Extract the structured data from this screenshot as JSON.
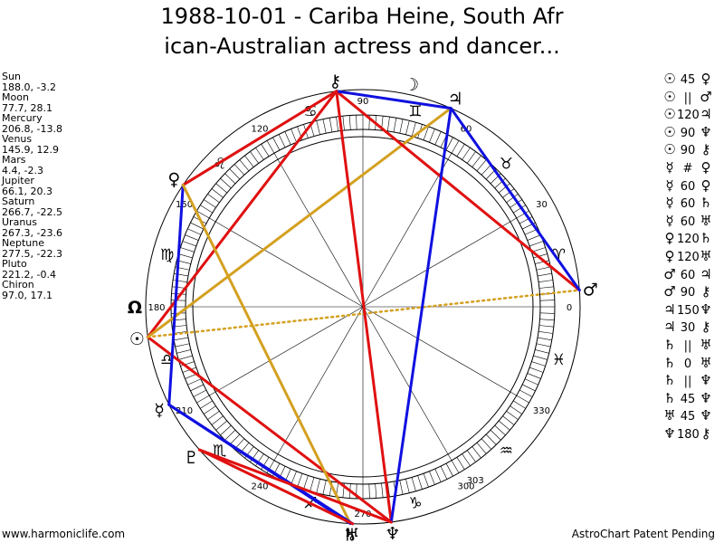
{
  "title": {
    "line1": "1988-10-01 - Cariba Heine, South Afr",
    "line2": "ican-Australian actress and dancer..."
  },
  "planets": [
    {
      "name": "Sun",
      "glyph": "☉",
      "coords": "188.0, -3.2",
      "lon": 188.0
    },
    {
      "name": "Moon",
      "glyph": "☽",
      "coords": "77.7, 28.1",
      "lon": 77.7
    },
    {
      "name": "Mercury",
      "glyph": "☿",
      "coords": "206.8, -13.8",
      "lon": 206.8
    },
    {
      "name": "Venus",
      "glyph": "♀",
      "coords": "145.9, 12.9",
      "lon": 145.9
    },
    {
      "name": "Mars",
      "glyph": "♂",
      "coords": "4.4, -2.3",
      "lon": 4.4
    },
    {
      "name": "Jupiter",
      "glyph": "♃",
      "coords": "66.1, 20.3",
      "lon": 66.1
    },
    {
      "name": "Saturn",
      "glyph": "♄",
      "coords": "266.7, -22.5",
      "lon": 266.7
    },
    {
      "name": "Uranus",
      "glyph": "♅",
      "coords": "267.3, -23.6",
      "lon": 267.3
    },
    {
      "name": "Neptune",
      "glyph": "♆",
      "coords": "277.5, -22.3",
      "lon": 277.5
    },
    {
      "name": "Pluto",
      "glyph": "♇",
      "coords": "221.2, -0.4",
      "lon": 221.2
    },
    {
      "name": "Chiron",
      "glyph": "⚷",
      "coords": "97.0, 17.1",
      "lon": 97.0
    }
  ],
  "extra_points": [
    {
      "glyph": "Ω",
      "lon": 180.0
    }
  ],
  "degree_labels": [
    "0",
    "30",
    "60",
    "90",
    "120",
    "150",
    "180",
    "210",
    "240",
    "270",
    "300",
    "330",
    "303"
  ],
  "zodiac": [
    "♈",
    "♉",
    "♊",
    "♋",
    "♌",
    "♍",
    "♎",
    "♏",
    "♐",
    "♑",
    "♒",
    "♓"
  ],
  "aspects_table": [
    {
      "g1": "☉",
      "sym": "45",
      "g2": "♀"
    },
    {
      "g1": "☉",
      "sym": "||",
      "g2": "♂"
    },
    {
      "g1": "☉",
      "sym": "120",
      "g2": "♃"
    },
    {
      "g1": "☉",
      "sym": "90",
      "g2": "♆"
    },
    {
      "g1": "☉",
      "sym": "90",
      "g2": "⚷"
    },
    {
      "g1": "☿",
      "sym": "#",
      "g2": "♀"
    },
    {
      "g1": "☿",
      "sym": "60",
      "g2": "♀"
    },
    {
      "g1": "☿",
      "sym": "60",
      "g2": "♄"
    },
    {
      "g1": "☿",
      "sym": "60",
      "g2": "♅"
    },
    {
      "g1": "♀",
      "sym": "120",
      "g2": "♄"
    },
    {
      "g1": "♀",
      "sym": "120",
      "g2": "♅"
    },
    {
      "g1": "♂",
      "sym": "60",
      "g2": "♃"
    },
    {
      "g1": "♂",
      "sym": "90",
      "g2": "⚷"
    },
    {
      "g1": "♃",
      "sym": "150",
      "g2": "♆"
    },
    {
      "g1": "♃",
      "sym": "30",
      "g2": "⚷"
    },
    {
      "g1": "♄",
      "sym": "||",
      "g2": "♅"
    },
    {
      "g1": "♄",
      "sym": "0",
      "g2": "♅"
    },
    {
      "g1": "♄",
      "sym": "||",
      "g2": "♆"
    },
    {
      "g1": "♄",
      "sym": "45",
      "g2": "♆"
    },
    {
      "g1": "♅",
      "sym": "45",
      "g2": "♆"
    },
    {
      "g1": "♆",
      "sym": "180",
      "g2": "⚷"
    }
  ],
  "aspect_lines": [
    {
      "a": "Sun",
      "b": "Chiron",
      "color": "#e01010"
    },
    {
      "a": "Sun",
      "b": "Neptune",
      "color": "#e01010"
    },
    {
      "a": "Sun",
      "b": "Jupiter",
      "color": "#d4a020"
    },
    {
      "a": "Sun",
      "b": "Mars",
      "color": "#d4a020",
      "dotted": true
    },
    {
      "a": "Mars",
      "b": "Chiron",
      "color": "#e01010"
    },
    {
      "a": "Mars",
      "b": "Jupiter",
      "color": "#1010e0"
    },
    {
      "a": "Chiron",
      "b": "Jupiter",
      "color": "#1010e0"
    },
    {
      "a": "Chiron",
      "b": "Neptune",
      "color": "#e01010"
    },
    {
      "a": "Chiron",
      "b": "Venus",
      "color": "#e01010"
    },
    {
      "a": "Venus",
      "b": "Mercury",
      "color": "#1010e0"
    },
    {
      "a": "Venus",
      "b": "Saturn",
      "color": "#d4a020"
    },
    {
      "a": "Mercury",
      "b": "Saturn",
      "color": "#1010e0"
    },
    {
      "a": "Mercury",
      "b": "Uranus",
      "color": "#1010e0"
    },
    {
      "a": "Jupiter",
      "b": "Neptune",
      "color": "#1010e0"
    },
    {
      "a": "Pluto",
      "b": "Uranus",
      "color": "#e01010"
    },
    {
      "a": "Pluto",
      "b": "Neptune",
      "color": "#e01010"
    }
  ],
  "footer": {
    "left": "www.harmoniclife.com",
    "right": "AstroChart Patent Pending"
  }
}
